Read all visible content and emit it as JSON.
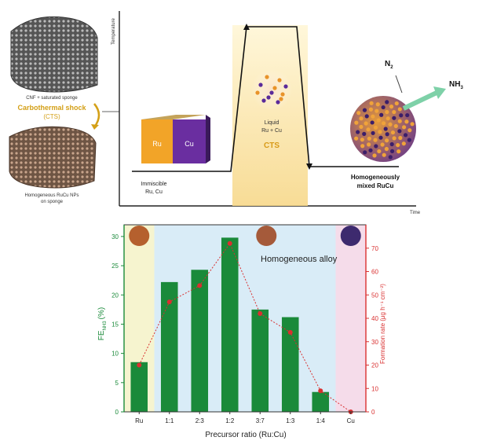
{
  "top_panel": {
    "sponge_top_caption": "CNF + saturated sponge",
    "process_label_line1": "Carbothermal shock",
    "process_label_line2": "(CTS)",
    "sponge_bottom_caption_line1": "Homogeneous RuCu NPs",
    "sponge_bottom_caption_line2": "on sponge",
    "y_axis_label": "Temperature",
    "x_axis_label": "Time",
    "immiscible_label_line1": "Immiscible",
    "immiscible_label_line2": "Ru, Cu",
    "block_left_label": "Ru",
    "block_right_label": "Cu",
    "liquid_label_line1": "Liquid",
    "liquid_label_line2": "Ru + Cu",
    "cts_label": "CTS",
    "homogeneous_label_line1": "Homogeneously",
    "homogeneous_label_line2": "mixed RuCu",
    "n2_label": "N",
    "n2_sub": "2",
    "nh3_label": "NH",
    "nh3_sub": "3"
  },
  "chart_data": {
    "type": "bar",
    "categories": [
      "Ru",
      "1:1",
      "2:3",
      "1:2",
      "3:7",
      "1:3",
      "1:4",
      "Cu"
    ],
    "xlabel": "Precursor ratio (Ru:Cu)",
    "ylabel_left": "FE",
    "ylabel_left_sub": "NH3",
    "ylabel_left_unit": "(%)",
    "ylabel_right": "Formation rate (μg h⁻¹ cm⁻²)",
    "ylim_left": [
      0,
      32
    ],
    "ylim_right": [
      0,
      80
    ],
    "left_ticks": [
      0,
      5,
      10,
      15,
      20,
      25,
      30
    ],
    "right_ticks": [
      0,
      10,
      20,
      30,
      40,
      50,
      60,
      70
    ],
    "series": [
      {
        "axis": "left",
        "kind": "bar",
        "values": [
          8.5,
          22.2,
          24.3,
          29.8,
          17.5,
          16.2,
          3.4,
          0
        ],
        "color": "#1a8a3a"
      },
      {
        "axis": "right",
        "kind": "line",
        "values": [
          20,
          47,
          54,
          72,
          42,
          34,
          9,
          0
        ],
        "color": "#d93030"
      }
    ],
    "annotation": "Homogeneous alloy",
    "colors": {
      "ru_region": "#f6f4cf",
      "alloy_region": "#d9ecf7",
      "cu_region": "#f5dcea",
      "bar": "#1a8a3a",
      "line": "#d93030"
    }
  }
}
